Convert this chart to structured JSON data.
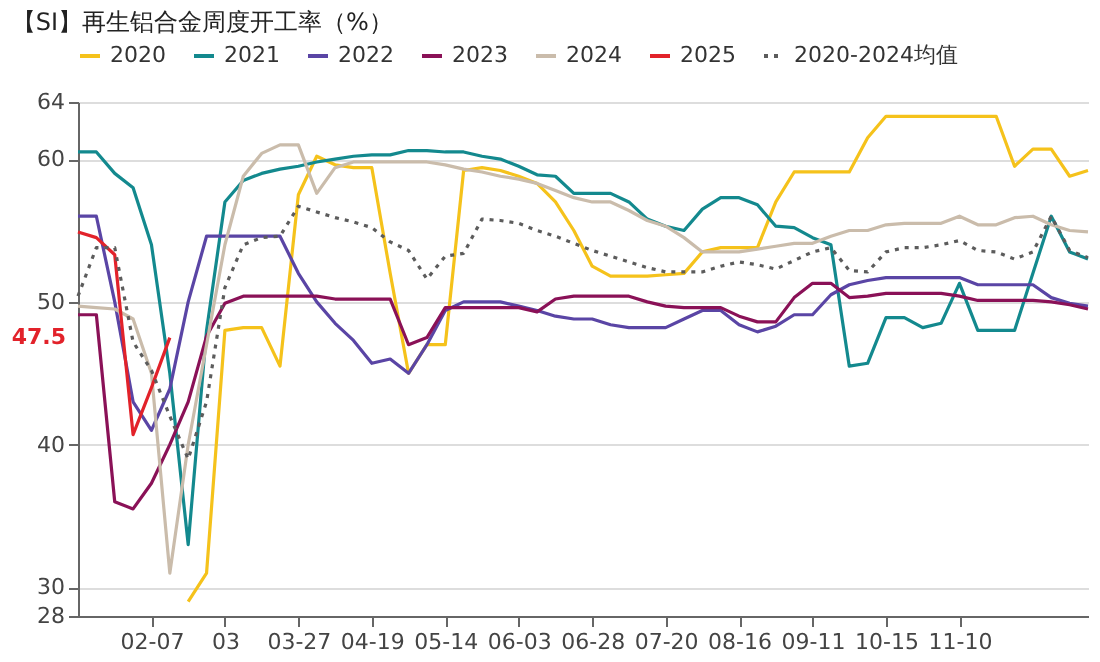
{
  "chart_data": {
    "type": "line",
    "title": "【SI】再生铝合金周度开工率（%）",
    "categories": [
      null,
      null,
      null,
      null,
      "02-07",
      null,
      null,
      null,
      "03",
      null,
      null,
      null,
      "03-27",
      null,
      null,
      null,
      "04-19",
      null,
      null,
      null,
      "05-14",
      null,
      null,
      null,
      "06-03",
      null,
      null,
      null,
      "06-28",
      null,
      null,
      null,
      "07-20",
      null,
      null,
      null,
      "08-16",
      null,
      null,
      null,
      "09-11",
      null,
      null,
      null,
      "10-15",
      null,
      null,
      null,
      "11-10",
      null,
      null,
      null,
      null,
      null,
      null,
      null
    ],
    "ylim": [
      28,
      64
    ],
    "yticks": [
      28,
      30,
      40,
      50,
      60,
      64
    ],
    "grid": "y",
    "legend": "top",
    "series": [
      {
        "name": "2020",
        "color": "#f5c21b",
        "values": [
          null,
          null,
          null,
          null,
          null,
          null,
          29,
          31,
          48,
          48.2,
          48.2,
          45.5,
          57.5,
          60.2,
          59.6,
          59.4,
          59.4,
          52,
          45,
          47,
          47,
          59.2,
          59.4,
          59.2,
          58.8,
          58.3,
          57,
          55,
          52.5,
          51.8,
          51.8,
          51.8,
          51.9,
          52,
          53.5,
          53.8,
          53.8,
          53.8,
          57,
          59.1,
          59.1,
          59.1,
          59.1,
          61.5,
          63,
          63,
          63,
          63,
          63,
          63,
          63,
          59.5,
          60.7,
          60.7,
          58.8,
          59.2
        ]
      },
      {
        "name": "2021",
        "color": "#13898e",
        "values": [
          60.5,
          60.5,
          59,
          58,
          54,
          45,
          33,
          48,
          57,
          58.5,
          59,
          59.3,
          59.5,
          59.8,
          60,
          60.2,
          60.3,
          60.3,
          60.6,
          60.6,
          60.5,
          60.5,
          60.2,
          60,
          59.5,
          58.9,
          58.8,
          57.6,
          57.6,
          57.6,
          57,
          55.8,
          55.3,
          55,
          56.5,
          57.3,
          57.3,
          56.8,
          55.3,
          55.2,
          54.5,
          54,
          45.5,
          45.7,
          48.9,
          48.9,
          48.2,
          48.5,
          51.3,
          48,
          48,
          48,
          52,
          56,
          53.5,
          53
        ]
      },
      {
        "name": "2022",
        "color": "#5a45a5",
        "values": [
          56,
          56,
          50,
          43,
          41,
          43.9,
          50,
          54.6,
          54.6,
          54.6,
          54.6,
          54.6,
          52,
          50,
          48.5,
          47.3,
          45.7,
          46,
          45,
          47,
          49.4,
          50,
          50,
          50,
          49.7,
          49.4,
          49,
          48.8,
          48.8,
          48.4,
          48.2,
          48.2,
          48.2,
          48.8,
          49.4,
          49.4,
          48.4,
          47.9,
          48.3,
          49.1,
          49.1,
          50.5,
          51.2,
          51.5,
          51.7,
          51.7,
          51.7,
          51.7,
          51.7,
          51.2,
          51.2,
          51.2,
          51.2,
          50.3,
          49.9,
          49.7
        ]
      },
      {
        "name": "2023",
        "color": "#8a1157",
        "values": [
          49.1,
          49.1,
          36,
          35.5,
          37.3,
          40,
          43,
          47.6,
          49.9,
          50.4,
          50.4,
          50.4,
          50.4,
          50.4,
          50.2,
          50.2,
          50.2,
          50.2,
          47,
          47.5,
          49.6,
          49.6,
          49.6,
          49.6,
          49.6,
          49.3,
          50.2,
          50.4,
          50.4,
          50.4,
          50.4,
          50,
          49.7,
          49.6,
          49.6,
          49.6,
          49,
          48.6,
          48.6,
          50.3,
          51.3,
          51.3,
          50.3,
          50.4,
          50.6,
          50.6,
          50.6,
          50.6,
          50.4,
          50.1,
          50.1,
          50.1,
          50.1,
          50,
          49.8,
          49.5
        ]
      },
      {
        "name": "2024",
        "color": "#cabcab",
        "values": [
          49.7,
          49.6,
          49.5,
          48.8,
          45,
          31,
          40,
          47,
          54,
          58.8,
          60.4,
          61,
          61,
          57.6,
          59.4,
          59.8,
          59.8,
          59.8,
          59.8,
          59.8,
          59.6,
          59.3,
          59.1,
          58.8,
          58.6,
          58.3,
          57.8,
          57.3,
          57,
          57,
          56.4,
          55.7,
          55.3,
          54.5,
          53.5,
          53.5,
          53.5,
          53.7,
          53.9,
          54.1,
          54.1,
          54.6,
          55,
          55,
          55.4,
          55.5,
          55.5,
          55.5,
          56,
          55.4,
          55.4,
          55.9,
          56,
          55.4,
          55,
          54.9
        ]
      },
      {
        "name": "2025",
        "color": "#e2222a",
        "values": [
          54.9,
          54.5,
          53.3,
          40.7,
          44,
          47.5,
          null,
          null,
          null,
          null,
          null,
          null,
          null,
          null,
          null,
          null,
          null,
          null,
          null,
          null,
          null,
          null,
          null,
          null,
          null,
          null,
          null,
          null,
          null,
          null,
          null,
          null,
          null,
          null,
          null,
          null,
          null,
          null,
          null,
          null,
          null,
          null,
          null,
          null,
          null,
          null,
          null,
          null,
          null,
          null,
          null,
          null,
          null,
          null,
          null,
          null
        ]
      },
      {
        "name": "2020-2024均值",
        "color": "#5c5c5c",
        "line_style": "dotted",
        "values": [
          50.4,
          53.8,
          53.8,
          47.2,
          45.2,
          42,
          39,
          43,
          51,
          54,
          54.5,
          54.6,
          56.7,
          56.3,
          55.9,
          55.6,
          55.2,
          54.2,
          53.6,
          51.6,
          53.2,
          53.4,
          55.8,
          55.7,
          55.5,
          55,
          54.6,
          54.1,
          53.6,
          53.2,
          52.8,
          52.4,
          52.1,
          52.1,
          52.1,
          52.5,
          52.8,
          52.6,
          52.3,
          52.9,
          53.5,
          53.8,
          52.2,
          52.1,
          53.5,
          53.8,
          53.8,
          54,
          54.3,
          53.6,
          53.5,
          53,
          53.5,
          56,
          53.6,
          53.1
        ]
      }
    ],
    "annotations": [
      "47.5"
    ]
  }
}
